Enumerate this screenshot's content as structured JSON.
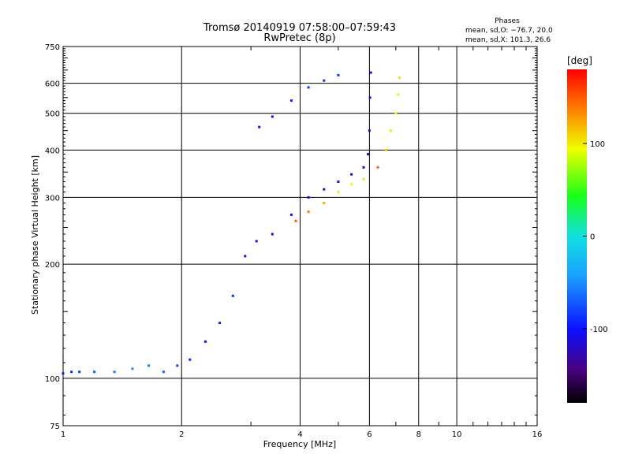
{
  "title": "Tromsø 20140919 07:58:00–07:59:43",
  "subtitle": "RwPretec (8p)",
  "phase_info": {
    "heading": "Phases",
    "line_o": "mean, sd,O: −76.7, 20.0",
    "line_x": "mean, sd,X: 101.3, 26.6"
  },
  "chart_data": {
    "type": "scatter",
    "title": "Tromsø 20140919 07:58:00–07:59:43",
    "subtitle": "RwPretec (8p)",
    "xlabel": "Frequency [MHz]",
    "ylabel": "Stationary phase Virtual Height [km]",
    "x_scale": "log",
    "y_scale": "log",
    "xlim": [
      1,
      16
    ],
    "ylim": [
      75,
      750
    ],
    "x_ticks": [
      1,
      2,
      4,
      6,
      8,
      10,
      16
    ],
    "y_ticks": [
      75,
      100,
      200,
      300,
      400,
      500,
      600,
      750
    ],
    "grid": true,
    "colorbar": {
      "label": "[deg]",
      "range": [
        -180,
        180
      ],
      "ticks": [
        100,
        0,
        -100
      ]
    },
    "trace_o_mode": [
      [
        1.0,
        103,
        -95
      ],
      [
        1.05,
        104,
        -90
      ],
      [
        1.1,
        104,
        -85
      ],
      [
        1.2,
        104,
        -70
      ],
      [
        1.35,
        104,
        -60
      ],
      [
        1.5,
        106,
        -50
      ],
      [
        1.65,
        108,
        -60
      ],
      [
        1.8,
        104,
        -70
      ],
      [
        1.95,
        108,
        -80
      ],
      [
        2.1,
        112,
        -95
      ],
      [
        2.3,
        125,
        -100
      ],
      [
        2.5,
        140,
        -95
      ],
      [
        2.7,
        165,
        -90
      ],
      [
        2.9,
        210,
        -105
      ],
      [
        3.1,
        230,
        -110
      ],
      [
        3.4,
        240,
        -110
      ],
      [
        3.8,
        270,
        -115
      ],
      [
        4.2,
        300,
        -115
      ],
      [
        4.6,
        315,
        -115
      ],
      [
        5.0,
        330,
        -115
      ],
      [
        5.4,
        345,
        -115
      ],
      [
        5.8,
        360,
        -120
      ],
      [
        5.95,
        390,
        -125
      ],
      [
        6.0,
        450,
        -120
      ],
      [
        6.02,
        550,
        -115
      ],
      [
        6.05,
        640,
        -110
      ]
    ],
    "trace_x_mode": [
      [
        3.9,
        260,
        150
      ],
      [
        4.2,
        275,
        140
      ],
      [
        4.6,
        290,
        120
      ],
      [
        5.0,
        310,
        100
      ],
      [
        5.4,
        325,
        90
      ],
      [
        5.8,
        335,
        85
      ],
      [
        6.3,
        360,
        150
      ],
      [
        6.6,
        400,
        110
      ],
      [
        6.8,
        450,
        100
      ],
      [
        7.0,
        500,
        95
      ],
      [
        7.1,
        560,
        100
      ],
      [
        7.15,
        620,
        105
      ]
    ],
    "trace_oblique": [
      [
        3.15,
        460,
        -110
      ],
      [
        3.4,
        490,
        -100
      ],
      [
        3.8,
        540,
        -95
      ],
      [
        4.2,
        585,
        -90
      ],
      [
        4.6,
        610,
        -90
      ],
      [
        5.0,
        630,
        -85
      ]
    ]
  }
}
